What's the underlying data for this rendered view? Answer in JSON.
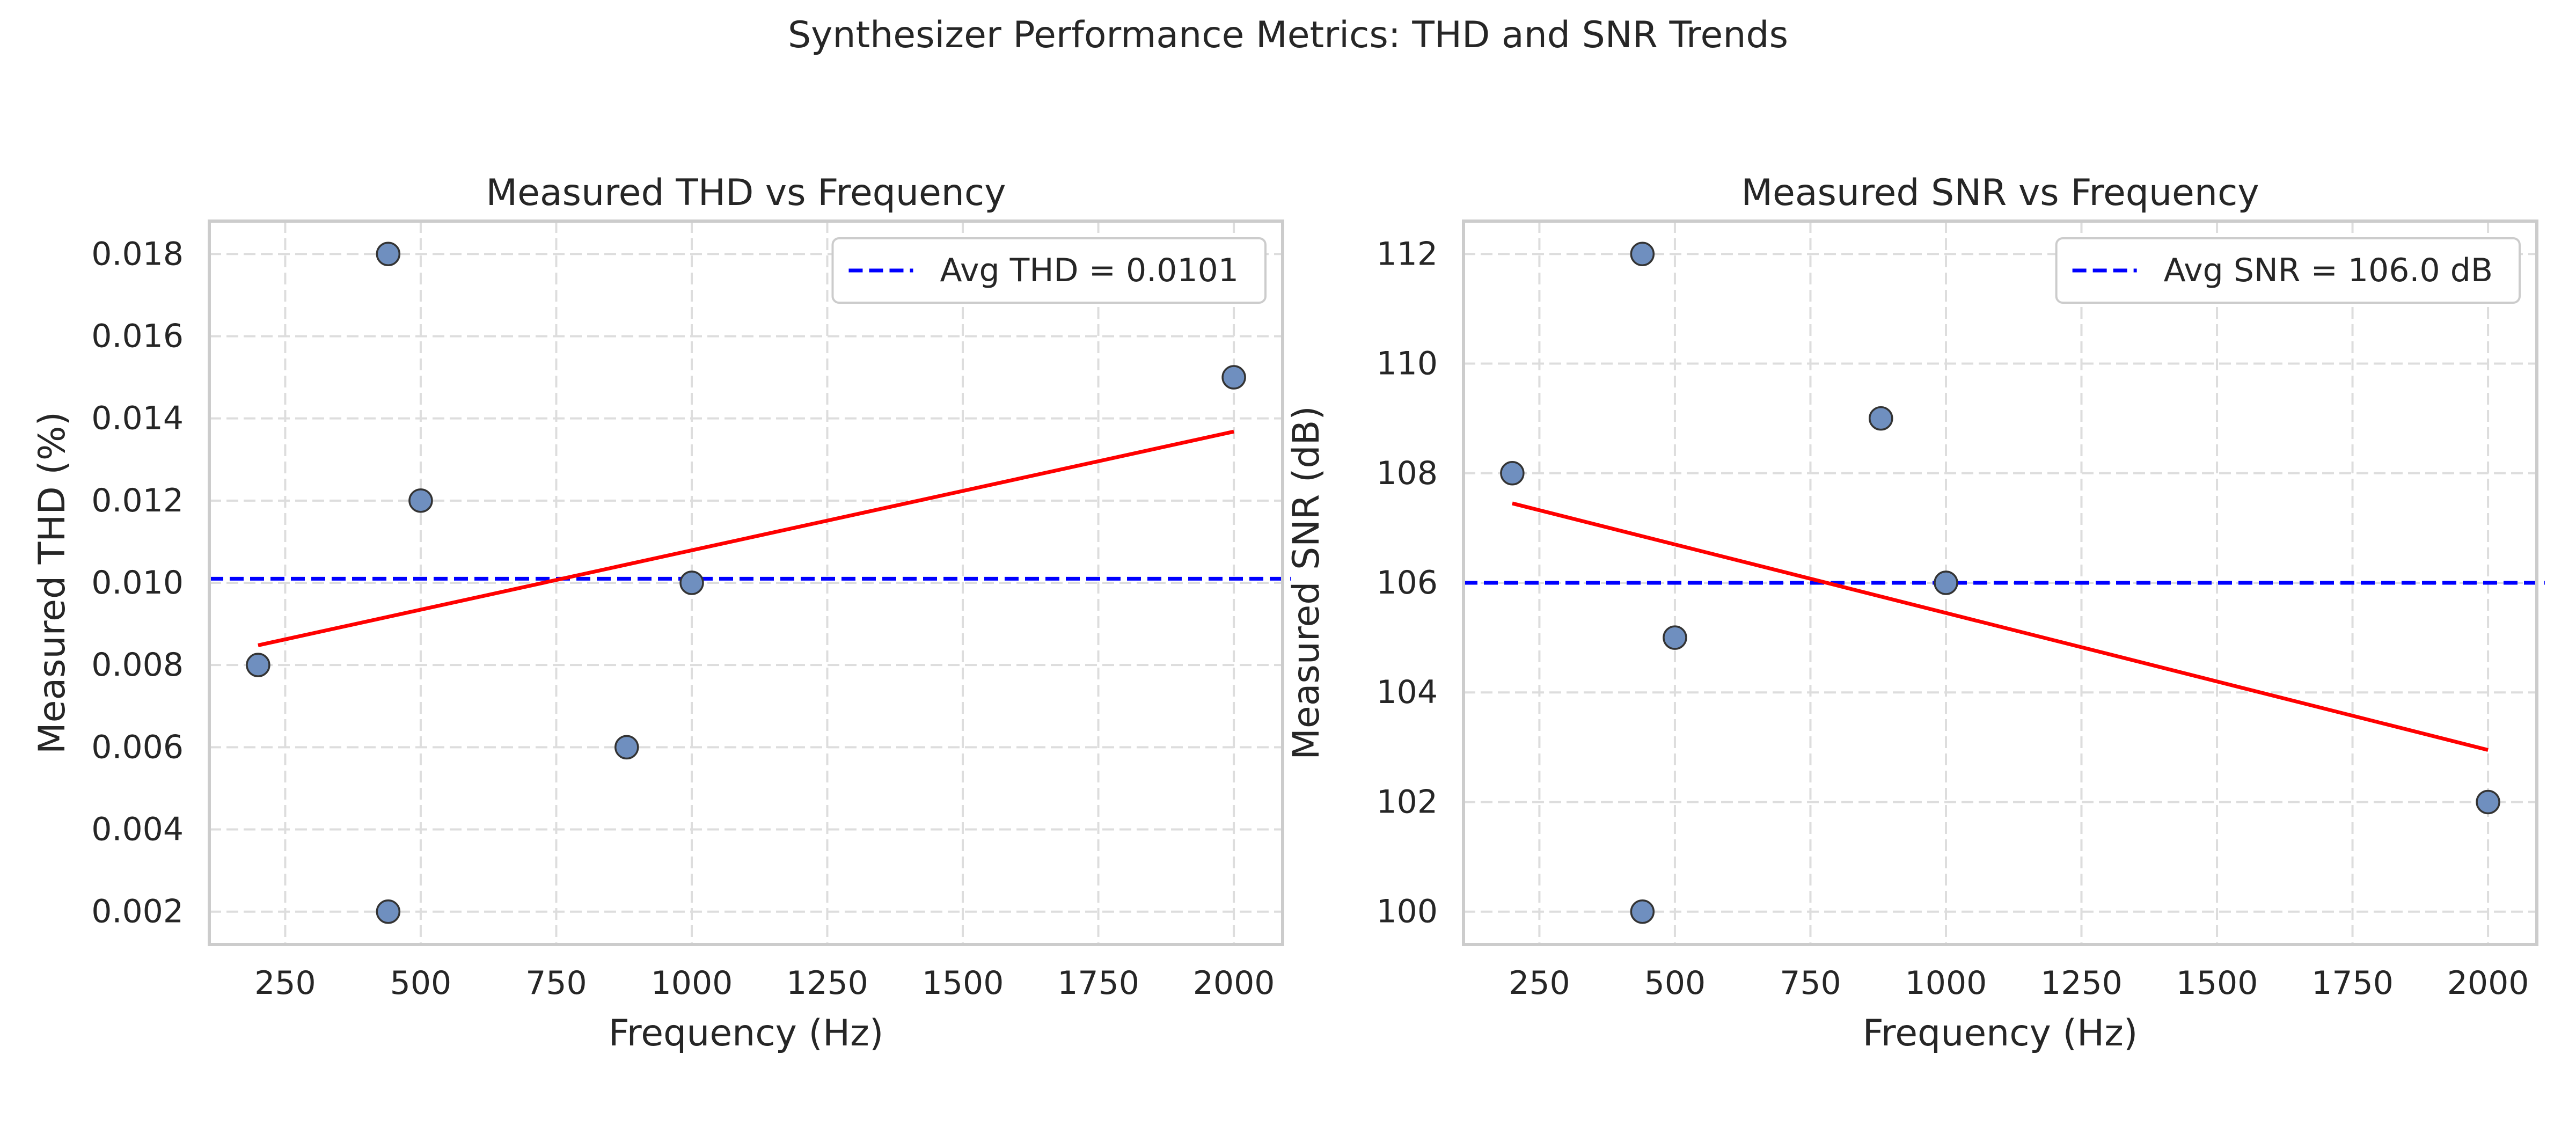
{
  "figure": {
    "title": "Synthesizer Performance Metrics: THD and SNR Trends"
  },
  "colors": {
    "point_fill": "#6F8FBF",
    "point_edge": "#333333",
    "trend_line": "#ff0000",
    "avg_line": "#0000ff",
    "grid": "#dddddd",
    "spine": "#cccccc"
  },
  "chart_data": [
    {
      "type": "scatter",
      "title": "Measured THD vs Frequency",
      "xlabel": "Frequency (Hz)",
      "ylabel": "Measured THD (%)",
      "xlim": [
        110,
        2090
      ],
      "ylim": [
        0.0012,
        0.0188
      ],
      "xticks": [
        250,
        500,
        750,
        1000,
        1250,
        1500,
        1750,
        2000
      ],
      "xtick_labels": [
        "250",
        "500",
        "750",
        "1000",
        "1250",
        "1500",
        "1750",
        "2000"
      ],
      "yticks": [
        0.002,
        0.004,
        0.006,
        0.008,
        0.01,
        0.012,
        0.014,
        0.016,
        0.018
      ],
      "ytick_labels": [
        "0.002",
        "0.004",
        "0.006",
        "0.008",
        "0.010",
        "0.012",
        "0.014",
        "0.016",
        "0.018"
      ],
      "grid": true,
      "legend_position": "top-right",
      "points": {
        "x": [
          200,
          440,
          440,
          500,
          880,
          1000,
          2000
        ],
        "y": [
          0.008,
          0.018,
          0.002,
          0.012,
          0.006,
          0.01,
          0.015
        ]
      },
      "trend": {
        "x": [
          200,
          2000
        ],
        "y": [
          0.00848,
          0.01368
        ]
      },
      "average": {
        "value": 0.0101,
        "label": "Avg THD = 0.0101"
      }
    },
    {
      "type": "scatter",
      "title": "Measured SNR vs Frequency",
      "xlabel": "Frequency (Hz)",
      "ylabel": "Measured SNR (dB)",
      "xlim": [
        110,
        2090
      ],
      "ylim": [
        99.4,
        112.6
      ],
      "xticks": [
        250,
        500,
        750,
        1000,
        1250,
        1500,
        1750,
        2000
      ],
      "xtick_labels": [
        "250",
        "500",
        "750",
        "1000",
        "1250",
        "1500",
        "1750",
        "2000"
      ],
      "yticks": [
        100,
        102,
        104,
        106,
        108,
        110,
        112
      ],
      "ytick_labels": [
        "100",
        "102",
        "104",
        "106",
        "108",
        "110",
        "112"
      ],
      "grid": true,
      "legend_position": "top-right",
      "points": {
        "x": [
          200,
          440,
          440,
          500,
          880,
          1000,
          2000
        ],
        "y": [
          108,
          112,
          100,
          105,
          109,
          106,
          102
        ]
      },
      "trend": {
        "x": [
          200,
          2000
        ],
        "y": [
          107.45,
          102.95
        ]
      },
      "average": {
        "value": 106.0,
        "label": "Avg SNR = 106.0 dB"
      }
    }
  ]
}
